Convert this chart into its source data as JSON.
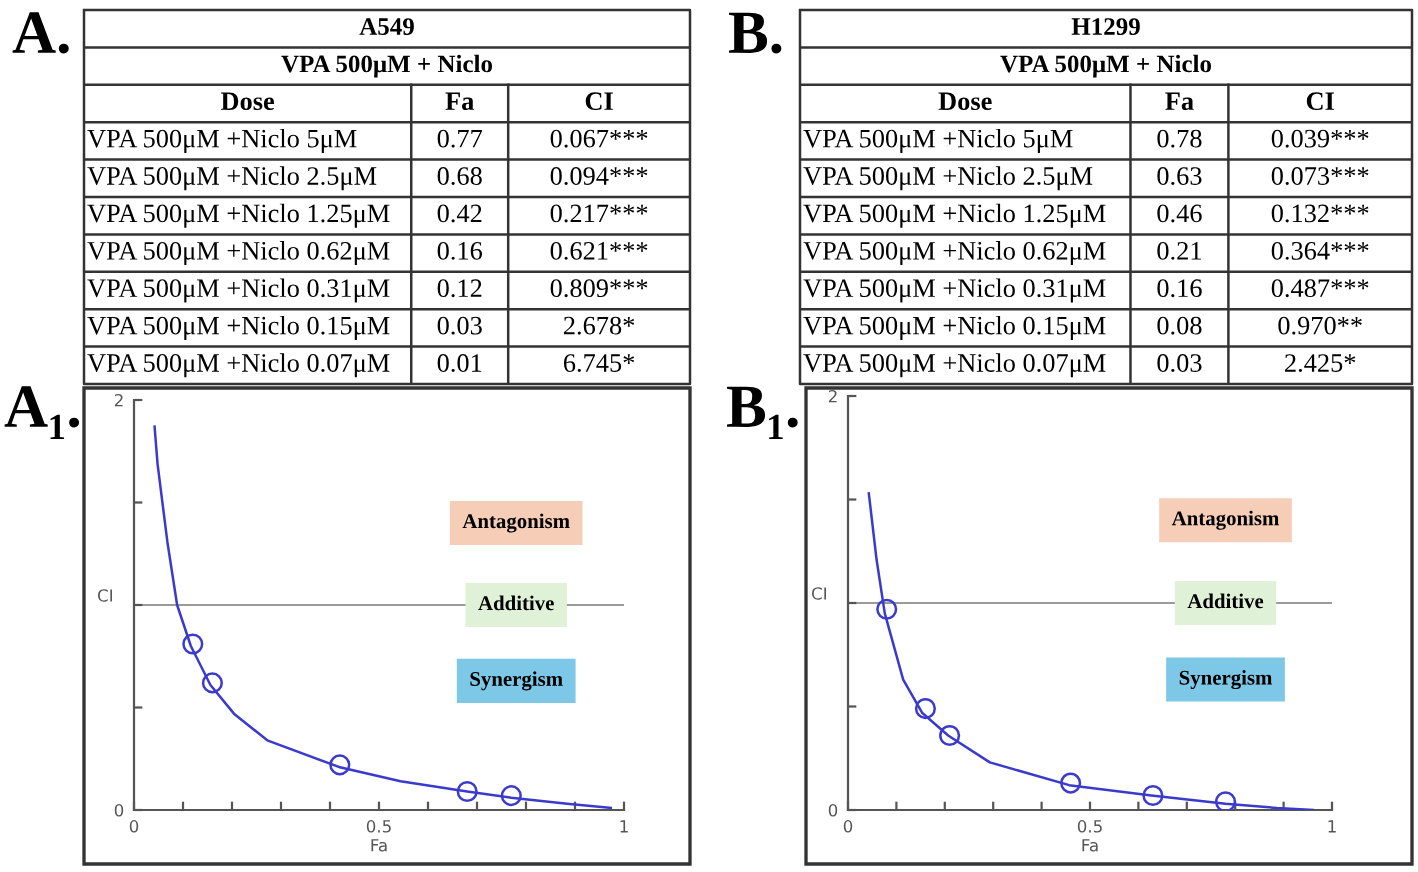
{
  "chart_data": [
    {
      "type": "other",
      "title": "A549",
      "subtitle": "VPA 500μM + Niclo",
      "annotations": [
        "A.",
        "Dose",
        "Fa",
        "CI",
        "VPA 500μM +Niclo 5μM",
        "0.77",
        "0.067***",
        "VPA 500μM +Niclo 2.5μM",
        "0.68",
        "0.094***",
        "VPA 500μM +Niclo 1.25μM",
        "0.42",
        "0.217***",
        "VPA 500μM +Niclo 0.62μM",
        "0.16",
        "0.621***",
        "VPA 500μM +Niclo 0.31μM",
        "0.12",
        "0.809***",
        "VPA 500μM +Niclo 0.15μM",
        "0.03",
        "2.678*",
        "VPA 500μM +Niclo 0.07μM",
        "0.01",
        "6.745*"
      ]
    },
    {
      "type": "other",
      "title": "H1299",
      "subtitle": "VPA 500μM + Niclo",
      "annotations": [
        "B.",
        "Dose",
        "Fa",
        "CI",
        "VPA 500μM +Niclo 5μM",
        "0.78",
        "0.039***",
        "VPA 500μM +Niclo 2.5μM",
        "0.63",
        "0.073***",
        "VPA 500μM +Niclo 1.25μM",
        "0.46",
        "0.132***",
        "VPA 500μM +Niclo 0.62μM",
        "0.21",
        "0.364***",
        "VPA 500μM +Niclo 0.31μM",
        "0.16",
        "0.487***",
        "VPA 500μM +Niclo 0.15μM",
        "0.08",
        "0.970**",
        "VPA 500μM +Niclo 0.07μM",
        "0.03",
        "2.425*"
      ]
    },
    {
      "type": "scatter",
      "xlabel": "Fa",
      "ylabel": "CI",
      "xlim": [
        0,
        1
      ],
      "ylim": [
        0,
        2
      ],
      "xticks": [
        0,
        {
          "value": 0.1,
          "label": null
        },
        {
          "value": 0.2,
          "label": null
        },
        {
          "value": 0.3,
          "label": null
        },
        {
          "value": 0.4,
          "label": null
        },
        0.5,
        {
          "value": 0.6,
          "label": null
        },
        {
          "value": 0.7,
          "label": null
        },
        {
          "value": 0.8,
          "label": null
        },
        {
          "value": 0.9,
          "label": null
        },
        1
      ],
      "yticks": [
        0,
        {
          "value": 0.5,
          "label": null
        },
        {
          "value": 1,
          "label": null
        },
        {
          "value": 1.5,
          "label": null
        },
        2
      ],
      "ref_lines": [
        {
          "axis": "y",
          "value": 1,
          "color": "#9a9a9a"
        }
      ],
      "annotations": [
        "A₁.",
        "Antagonism",
        "Additive",
        "Synergism"
      ],
      "series": [
        {
          "type": "line",
          "color": "#3a3acc",
          "x": [
            0.042,
            0.048,
            0.068,
            0.088,
            0.116,
            0.156,
            0.204,
            0.272,
            0.418,
            0.544,
            0.68,
            0.77,
            0.884,
            0.973
          ],
          "values": [
            1.87,
            1.69,
            1.31,
            1.0,
            0.8,
            0.61,
            0.47,
            0.34,
            0.21,
            0.14,
            0.09,
            0.06,
            0.03,
            0.01
          ]
        },
        {
          "type": "scatter",
          "color": "#3a3acc",
          "marker": "circle",
          "x": [
            0.77,
            0.68,
            0.42,
            0.16,
            0.12
          ],
          "values": [
            0.07,
            0.09,
            0.22,
            0.62,
            0.81
          ]
        }
      ]
    },
    {
      "type": "scatter",
      "xlabel": "Fa",
      "ylabel": "CI",
      "xlim": [
        0,
        1
      ],
      "ylim": [
        0,
        2
      ],
      "xticks": [
        0,
        {
          "value": 0.1,
          "label": null
        },
        {
          "value": 0.2,
          "label": null
        },
        {
          "value": 0.3,
          "label": null
        },
        {
          "value": 0.4,
          "label": null
        },
        0.5,
        {
          "value": 0.6,
          "label": null
        },
        {
          "value": 0.7,
          "label": null
        },
        {
          "value": 0.8,
          "label": null
        },
        {
          "value": 0.9,
          "label": null
        },
        1
      ],
      "yticks": [
        0,
        {
          "value": 0.5,
          "label": null
        },
        {
          "value": 1,
          "label": null
        },
        {
          "value": 1.5,
          "label": null
        },
        2
      ],
      "ref_lines": [
        {
          "axis": "y",
          "value": 1,
          "color": "#9a9a9a"
        }
      ],
      "annotations": [
        "B₁.",
        "Antagonism",
        "Additive",
        "Synergism"
      ],
      "series": [
        {
          "type": "line",
          "color": "#3a3acc",
          "x": [
            0.043,
            0.059,
            0.076,
            0.114,
            0.153,
            0.207,
            0.293,
            0.457,
            0.627,
            0.78,
            0.886,
            0.96
          ],
          "values": [
            1.53,
            1.21,
            0.95,
            0.63,
            0.47,
            0.36,
            0.23,
            0.12,
            0.07,
            0.03,
            0.01,
            0.0
          ]
        },
        {
          "type": "scatter",
          "color": "#3a3acc",
          "marker": "circle",
          "x": [
            0.78,
            0.63,
            0.46,
            0.21,
            0.16,
            0.08
          ],
          "values": [
            0.04,
            0.07,
            0.13,
            0.36,
            0.49,
            0.97
          ]
        }
      ]
    }
  ]
}
